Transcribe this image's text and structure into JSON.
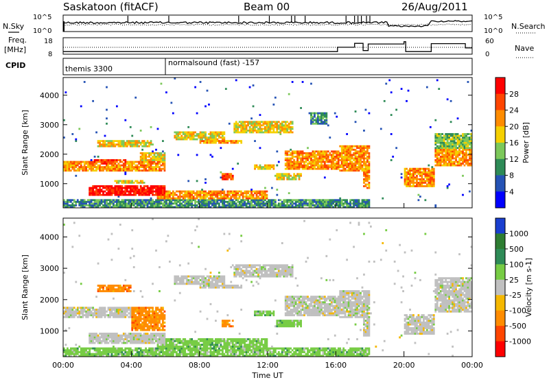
{
  "header": {
    "title": "Saskatoon (fitACF)",
    "beam": "Beam 00",
    "date": "26/Aug/2011"
  },
  "status_panels": {
    "nsky_label": "N.Sky",
    "nsky_ticks": [
      "10^5",
      "10^0"
    ],
    "nsearch_label": "N.Search",
    "nsearch_ticks": [
      "10^5",
      "10^0"
    ],
    "freq_label": "Freq.",
    "freq_unit": "[MHz]",
    "freq_ticks": [
      "18",
      "8"
    ],
    "nave_label": "Nave",
    "nave_ticks": [
      "60",
      "0"
    ],
    "cpid_label": "CPID",
    "cpid_segments": [
      {
        "label": "themis 3300",
        "start_hour": 0.0
      },
      {
        "label": "normalsound (fast) -157",
        "start_hour": 6.0
      }
    ],
    "freq_mhz_series": [
      [
        0,
        9.6
      ],
      [
        16.1,
        9.6
      ],
      [
        16.1,
        12.2
      ],
      [
        17.1,
        12.2
      ],
      [
        17.1,
        14.6
      ],
      [
        17.6,
        14.6
      ],
      [
        17.6,
        10.2
      ],
      [
        17.9,
        10.2
      ],
      [
        17.9,
        14.2
      ],
      [
        18.1,
        14.2
      ],
      [
        20,
        14.2
      ],
      [
        20,
        15.6
      ],
      [
        20.1,
        15.6
      ],
      [
        20.1,
        9.6
      ],
      [
        21.6,
        9.6
      ],
      [
        21.6,
        14.4
      ],
      [
        23.6,
        14.4
      ],
      [
        23.6,
        11.8
      ],
      [
        24,
        11.8
      ]
    ],
    "nave_series": [
      [
        0,
        25
      ],
      [
        24,
        25
      ]
    ]
  },
  "chart_data": [
    {
      "type": "heatmap",
      "name": "power",
      "xlabel": "",
      "ylabel": "Slant Range [km]",
      "xlim": [
        0,
        24
      ],
      "ylim": [
        180,
        4600
      ],
      "yticks": [
        1000,
        2000,
        3000,
        4000
      ],
      "colorbar": {
        "label": "Power [dB]",
        "ticks": [
          "4",
          "8",
          "12",
          "16",
          "20",
          "24",
          "28"
        ],
        "colors": [
          "#0000ff",
          "#2553b5",
          "#2e8b57",
          "#7cc85a",
          "#f5d000",
          "#ff8c00",
          "#ff4500",
          "#ff0000"
        ]
      },
      "regions": [
        {
          "t0": 0.0,
          "t1": 6.0,
          "r0": 1400,
          "r1": 1750,
          "level": 5
        },
        {
          "t0": 1.8,
          "t1": 3.7,
          "r0": 1650,
          "r1": 1850,
          "level": 6
        },
        {
          "t0": 2.0,
          "t1": 5.2,
          "r0": 2250,
          "r1": 2450,
          "level": 4
        },
        {
          "t0": 1.5,
          "t1": 6.0,
          "r0": 600,
          "r1": 950,
          "level": 7
        },
        {
          "t0": 3.0,
          "t1": 4.8,
          "r0": 1000,
          "r1": 1100,
          "level": 4
        },
        {
          "t0": 4.5,
          "t1": 6.0,
          "r0": 1750,
          "r1": 2050,
          "level": 4
        },
        {
          "t0": 5.5,
          "t1": 12.0,
          "r0": 500,
          "r1": 750,
          "level": 5
        },
        {
          "t0": 6.5,
          "t1": 9.5,
          "r0": 2500,
          "r1": 2800,
          "level": 4
        },
        {
          "t0": 8.0,
          "t1": 10.5,
          "r0": 2350,
          "r1": 2500,
          "level": 5
        },
        {
          "t0": 9.3,
          "t1": 10.0,
          "r0": 1100,
          "r1": 1350,
          "level": 6
        },
        {
          "t0": 10.0,
          "t1": 13.5,
          "r0": 2700,
          "r1": 3100,
          "level": 4
        },
        {
          "t0": 11.2,
          "t1": 12.4,
          "r0": 1500,
          "r1": 1650,
          "level": 4
        },
        {
          "t0": 12.5,
          "t1": 14.0,
          "r0": 1100,
          "r1": 1350,
          "level": 4
        },
        {
          "t0": 13.0,
          "t1": 16.2,
          "r0": 1500,
          "r1": 2100,
          "level": 5
        },
        {
          "t0": 14.5,
          "t1": 15.5,
          "r0": 3000,
          "r1": 3450,
          "level": 2
        },
        {
          "t0": 16.2,
          "t1": 18.0,
          "r0": 1400,
          "r1": 2300,
          "level": 5
        },
        {
          "t0": 17.6,
          "t1": 18.0,
          "r0": 800,
          "r1": 1450,
          "level": 5
        },
        {
          "t0": 20.0,
          "t1": 21.8,
          "r0": 900,
          "r1": 1550,
          "level": 5
        },
        {
          "t0": 21.8,
          "t1": 24.0,
          "r0": 1600,
          "r1": 2200,
          "level": 5
        },
        {
          "t0": 21.8,
          "t1": 24.0,
          "r0": 2200,
          "r1": 2700,
          "level": 3
        },
        {
          "t0": 0.0,
          "t1": 18.0,
          "r0": 200,
          "r1": 450,
          "level": 2
        }
      ]
    },
    {
      "type": "heatmap",
      "name": "velocity",
      "xlabel": "Time UT",
      "ylabel": "Slant Range [km]",
      "xlim": [
        0,
        24
      ],
      "ylim": [
        180,
        4600
      ],
      "yticks": [
        1000,
        2000,
        3000,
        4000
      ],
      "xticks": [
        "00:00",
        "04:00",
        "08:00",
        "12:00",
        "16:00",
        "20:00",
        "00:00"
      ],
      "colorbar": {
        "label": "Velocity [m s-1]",
        "ticks": [
          "1000",
          "500",
          "100",
          "25",
          "-25",
          "-100",
          "-500",
          "-1000"
        ],
        "colors": [
          "#1a3fd0",
          "#2e7d32",
          "#2e8b57",
          "#77cc44",
          "#c0c0c0",
          "#f5b800",
          "#ff8c00",
          "#ff4500",
          "#ff0000"
        ]
      },
      "regions": [
        {
          "t0": 0.0,
          "t1": 6.0,
          "r0": 1400,
          "r1": 1750,
          "level": 4
        },
        {
          "t0": 1.5,
          "t1": 6.0,
          "r0": 600,
          "r1": 950,
          "level": 4
        },
        {
          "t0": 2.0,
          "t1": 4.0,
          "r0": 2250,
          "r1": 2450,
          "level": 6
        },
        {
          "t0": 4.0,
          "t1": 6.0,
          "r0": 1000,
          "r1": 1800,
          "level": 6
        },
        {
          "t0": 5.5,
          "t1": 12.0,
          "r0": 500,
          "r1": 750,
          "level": 3
        },
        {
          "t0": 6.5,
          "t1": 9.5,
          "r0": 2500,
          "r1": 2800,
          "level": 4
        },
        {
          "t0": 8.0,
          "t1": 10.5,
          "r0": 2350,
          "r1": 2500,
          "level": 4
        },
        {
          "t0": 9.3,
          "t1": 10.0,
          "r0": 1100,
          "r1": 1350,
          "level": 6
        },
        {
          "t0": 10.0,
          "t1": 13.5,
          "r0": 2700,
          "r1": 3100,
          "level": 4
        },
        {
          "t0": 11.2,
          "t1": 12.4,
          "r0": 1500,
          "r1": 1650,
          "level": 3
        },
        {
          "t0": 13.0,
          "t1": 16.2,
          "r0": 1500,
          "r1": 2100,
          "level": 4
        },
        {
          "t0": 12.5,
          "t1": 14.0,
          "r0": 1100,
          "r1": 1350,
          "level": 3
        },
        {
          "t0": 16.2,
          "t1": 18.0,
          "r0": 1400,
          "r1": 2300,
          "level": 4
        },
        {
          "t0": 17.6,
          "t1": 18.0,
          "r0": 800,
          "r1": 1450,
          "level": 4
        },
        {
          "t0": 20.0,
          "t1": 21.8,
          "r0": 900,
          "r1": 1550,
          "level": 4
        },
        {
          "t0": 21.8,
          "t1": 24.0,
          "r0": 1600,
          "r1": 2700,
          "level": 4
        },
        {
          "t0": 0.0,
          "t1": 18.0,
          "r0": 200,
          "r1": 450,
          "level": 3
        }
      ]
    }
  ]
}
